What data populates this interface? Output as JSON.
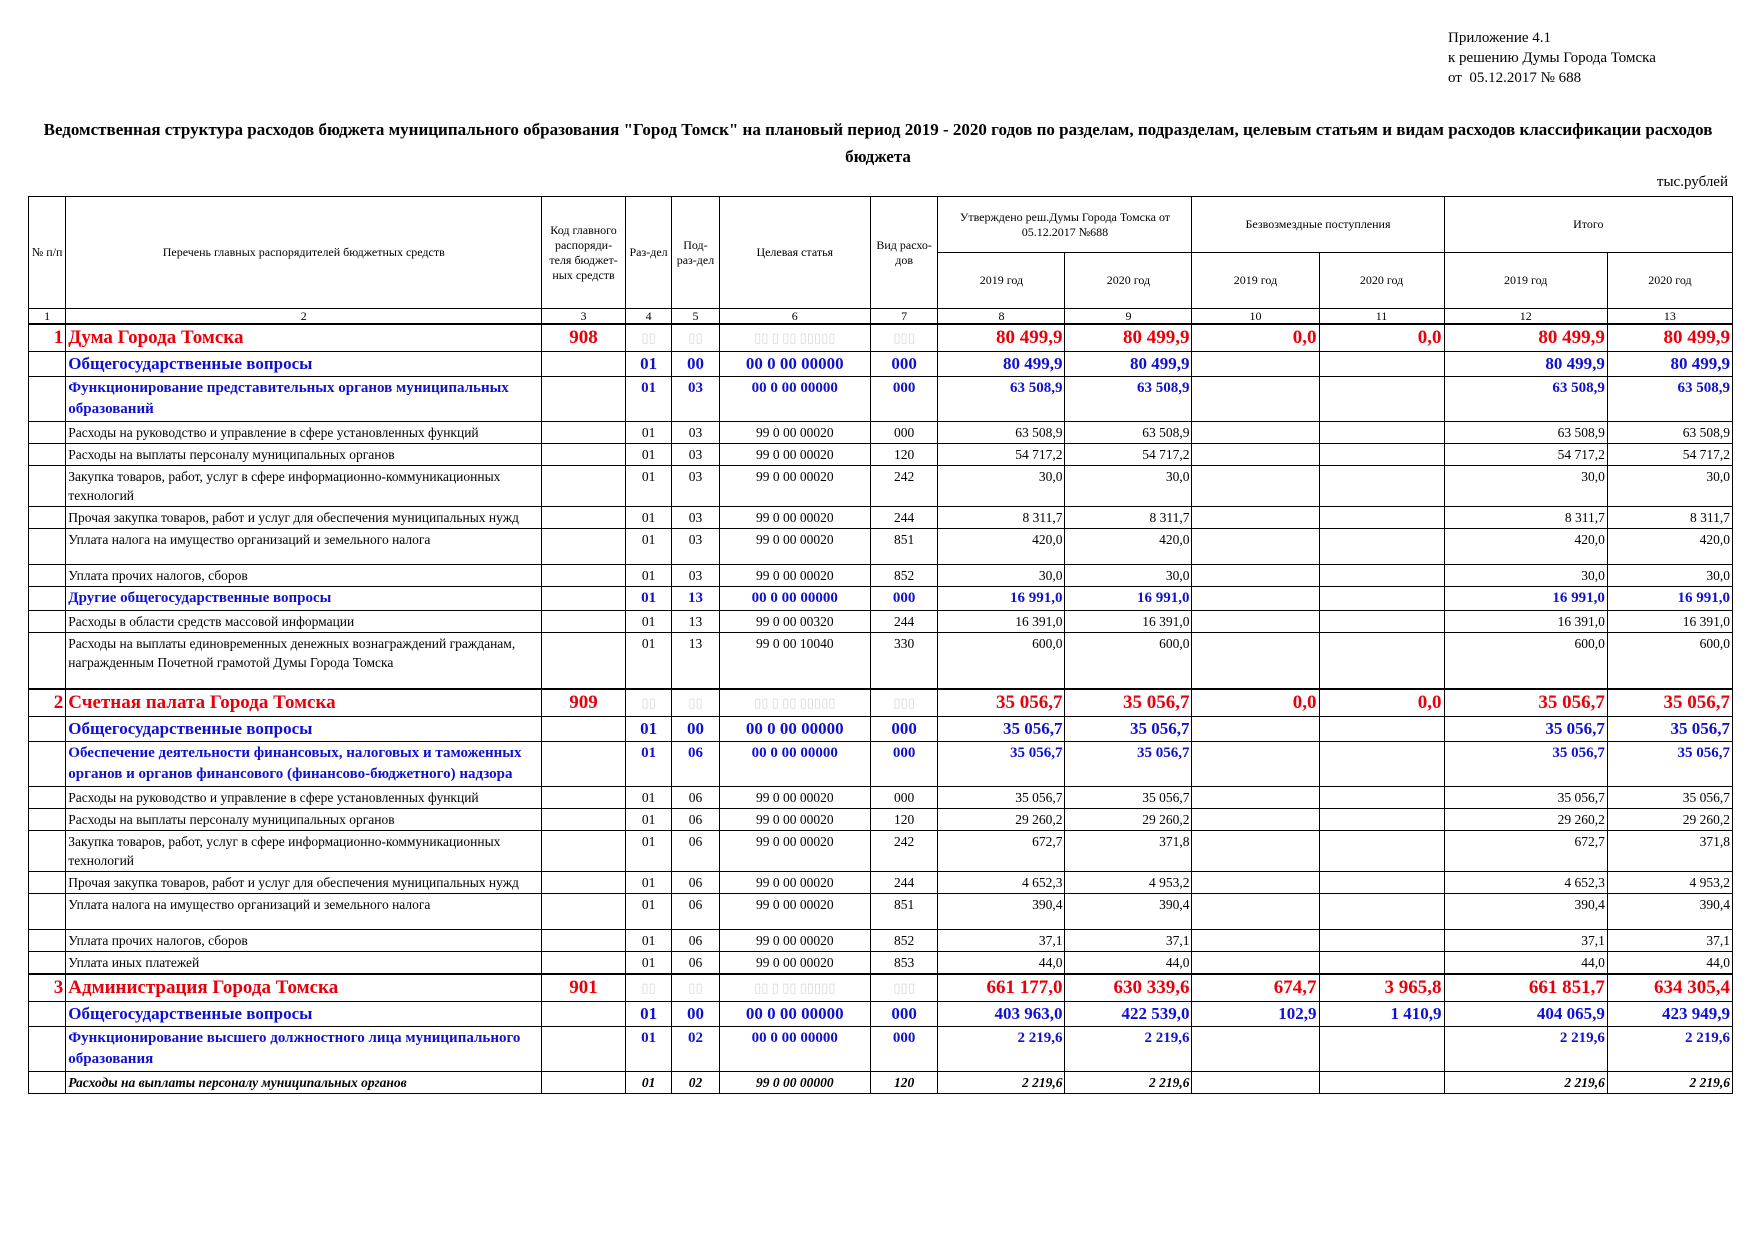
{
  "appendix": {
    "line1": "Приложение 4.1",
    "line2": "к решению Думы Города Томска",
    "line3": "от  05.12.2017 № 688"
  },
  "title": "Ведомственная структура расходов бюджета муниципального образования \"Город Томск\" на плановый период 2019 - 2020 годов по разделам, подразделам, целевым статьям и видам расходов классификации расходов бюджета",
  "units": "тыс.рублей",
  "header": {
    "num": "№ п/п",
    "name": "Перечень главных распорядителей бюджетных средств",
    "code": "Код главного распоряди-теля бюджет-ных средств",
    "razdel": "Раз-дел",
    "podrazdel": "Под-раз-дел",
    "statya": "Целевая статья",
    "vid": "Вид расхо-дов",
    "approved": "Утверждено реш.Думы Города Томска от 05.12.2017 №688",
    "free": "Безвозмездные поступления",
    "total": "Итого",
    "y2019": "2019 год",
    "y2020": "2020 год",
    "nums": [
      "1",
      "2",
      "3",
      "4",
      "5",
      "6",
      "7",
      "8",
      "9",
      "10",
      "11",
      "12",
      "13"
    ]
  },
  "rows": [
    {
      "t": "dept",
      "num": "1",
      "name": "Дума Города Томска",
      "code": "908",
      "r": "▯▯",
      "p": "▯▯",
      "s": "▯▯ ▯ ▯▯ ▯▯▯▯▯",
      "v": "▯▯▯",
      "a19": "80 499,9",
      "a20": "80 499,9",
      "f19": "0,0",
      "f20": "0,0",
      "t19": "80 499,9",
      "t20": "80 499,9"
    },
    {
      "t": "sec",
      "num": "",
      "name": "Общегосударственные вопросы",
      "code": "",
      "r": "01",
      "p": "00",
      "s": "00 0 00 00000",
      "v": "000",
      "a19": "80 499,9",
      "a20": "80 499,9",
      "f19": "",
      "f20": "",
      "t19": "80 499,9",
      "t20": "80 499,9"
    },
    {
      "t": "sub",
      "num": "",
      "name": "Функционирование представительных органов муниципальных образований",
      "code": "",
      "r": "01",
      "p": "03",
      "s": "00 0 00 00000",
      "v": "000",
      "a19": "63 508,9",
      "a20": "63 508,9",
      "f19": "",
      "f20": "",
      "t19": "63 508,9",
      "t20": "63 508,9"
    },
    {
      "t": "item",
      "ind": "1",
      "num": "",
      "name": "Расходы на руководство и управление в сфере установленных функций",
      "code": "",
      "r": "01",
      "p": "03",
      "s": "99 0 00 00020",
      "v": "000",
      "a19": "63 508,9",
      "a20": "63 508,9",
      "f19": "",
      "f20": "",
      "t19": "63 508,9",
      "t20": "63 508,9"
    },
    {
      "t": "item",
      "ind": "0",
      "num": "",
      "name": "Расходы на выплаты персоналу муниципальных органов",
      "code": "",
      "r": "01",
      "p": "03",
      "s": "99 0 00 00020",
      "v": "120",
      "a19": "54 717,2",
      "a20": "54 717,2",
      "f19": "",
      "f20": "",
      "t19": "54 717,2",
      "t20": "54 717,2"
    },
    {
      "t": "item",
      "ind": "2",
      "num": "",
      "name": "Закупка товаров, работ, услуг в сфере информационно-коммуникационных технологий",
      "code": "",
      "r": "01",
      "p": "03",
      "s": "99 0 00 00020",
      "v": "242",
      "a19": "30,0",
      "a20": "30,0",
      "f19": "",
      "f20": "",
      "t19": "30,0",
      "t20": "30,0"
    },
    {
      "t": "item",
      "ind": "2",
      "num": "",
      "name": "Прочая закупка товаров, работ и услуг для обеспечения муниципальных нужд",
      "code": "",
      "r": "01",
      "p": "03",
      "s": "99 0 00 00020",
      "v": "244",
      "a19": "8 311,7",
      "a20": "8 311,7",
      "f19": "",
      "f20": "",
      "t19": "8 311,7",
      "t20": "8 311,7"
    },
    {
      "t": "item",
      "ind": "2",
      "num": "",
      "name": "Уплата налога на имущество организаций и земельного налога",
      "code": "",
      "r": "01",
      "p": "03",
      "s": "99 0 00 00020",
      "v": "851",
      "a19": "420,0",
      "a20": "420,0",
      "f19": "",
      "f20": "",
      "t19": "420,0",
      "t20": "420,0",
      "h": "36"
    },
    {
      "t": "item",
      "ind": "2",
      "num": "",
      "name": "Уплата прочих налогов, сборов",
      "code": "",
      "r": "01",
      "p": "03",
      "s": "99 0 00 00020",
      "v": "852",
      "a19": "30,0",
      "a20": "30,0",
      "f19": "",
      "f20": "",
      "t19": "30,0",
      "t20": "30,0"
    },
    {
      "t": "sub",
      "num": "",
      "name": "Другие общегосударственные вопросы",
      "code": "",
      "r": "01",
      "p": "13",
      "s": "00 0 00 00000",
      "v": "000",
      "a19": "16 991,0",
      "a20": "16 991,0",
      "f19": "",
      "f20": "",
      "t19": "16 991,0",
      "t20": "16 991,0"
    },
    {
      "t": "item",
      "ind": "1",
      "num": "",
      "name": "Расходы в области средств массовой информации",
      "code": "",
      "r": "01",
      "p": "13",
      "s": "99 0 00 00320",
      "v": "244",
      "a19": "16 391,0",
      "a20": "16 391,0",
      "f19": "",
      "f20": "",
      "t19": "16 391,0",
      "t20": "16 391,0"
    },
    {
      "t": "item",
      "ind": "1",
      "num": "",
      "name": "Расходы на выплаты единовременных денежных вознаграждений гражданам, награжденным Почетной грамотой Думы Города Томска",
      "code": "",
      "r": "01",
      "p": "13",
      "s": "99 0 00 10040",
      "v": "330",
      "a19": "600,0",
      "a20": "600,0",
      "f19": "",
      "f20": "",
      "t19": "600,0",
      "t20": "600,0",
      "h": "56"
    },
    {
      "t": "dept",
      "num": "2",
      "name": "Счетная палата Города Томска",
      "code": "909",
      "r": "▯▯",
      "p": "▯▯",
      "s": "▯▯ ▯ ▯▯ ▯▯▯▯▯",
      "v": "▯▯▯",
      "a19": "35 056,7",
      "a20": "35 056,7",
      "f19": "0,0",
      "f20": "0,0",
      "t19": "35 056,7",
      "t20": "35 056,7"
    },
    {
      "t": "sec",
      "num": "",
      "name": "Общегосударственные вопросы",
      "code": "",
      "r": "01",
      "p": "00",
      "s": "00 0 00 00000",
      "v": "000",
      "a19": "35 056,7",
      "a20": "35 056,7",
      "f19": "",
      "f20": "",
      "t19": "35 056,7",
      "t20": "35 056,7"
    },
    {
      "t": "sub",
      "num": "",
      "name": "Обеспечение деятельности финансовых, налоговых и таможенных органов и органов финансового (финансово-бюджетного) надзора",
      "code": "",
      "r": "01",
      "p": "06",
      "s": "00 0 00 00000",
      "v": "000",
      "a19": "35 056,7",
      "a20": "35 056,7",
      "f19": "",
      "f20": "",
      "t19": "35 056,7",
      "t20": "35 056,7"
    },
    {
      "t": "item",
      "ind": "1",
      "num": "",
      "name": "Расходы на руководство и управление в сфере установленных функций",
      "code": "",
      "r": "01",
      "p": "06",
      "s": "99 0 00 00020",
      "v": "000",
      "a19": "35 056,7",
      "a20": "35 056,7",
      "f19": "",
      "f20": "",
      "t19": "35 056,7",
      "t20": "35 056,7"
    },
    {
      "t": "item",
      "ind": "0",
      "num": "",
      "name": "Расходы на выплаты персоналу муниципальных органов",
      "code": "",
      "r": "01",
      "p": "06",
      "s": "99 0 00 00020",
      "v": "120",
      "a19": "29 260,2",
      "a20": "29 260,2",
      "f19": "",
      "f20": "",
      "t19": "29 260,2",
      "t20": "29 260,2"
    },
    {
      "t": "item",
      "ind": "2",
      "num": "",
      "name": "Закупка товаров, работ, услуг в сфере информационно-коммуникационных технологий",
      "code": "",
      "r": "01",
      "p": "06",
      "s": "99 0 00 00020",
      "v": "242",
      "a19": "672,7",
      "a20": "371,8",
      "f19": "",
      "f20": "",
      "t19": "672,7",
      "t20": "371,8"
    },
    {
      "t": "item",
      "ind": "2",
      "num": "",
      "name": "Прочая закупка товаров, работ и услуг для обеспечения муниципальных нужд",
      "code": "",
      "r": "01",
      "p": "06",
      "s": "99 0 00 00020",
      "v": "244",
      "a19": "4 652,3",
      "a20": "4 953,2",
      "f19": "",
      "f20": "",
      "t19": "4 652,3",
      "t20": "4 953,2"
    },
    {
      "t": "item",
      "ind": "2",
      "num": "",
      "name": "Уплата налога на имущество организаций и земельного налога",
      "code": "",
      "r": "01",
      "p": "06",
      "s": "99 0 00 00020",
      "v": "851",
      "a19": "390,4",
      "a20": "390,4",
      "f19": "",
      "f20": "",
      "t19": "390,4",
      "t20": "390,4",
      "h": "36"
    },
    {
      "t": "item",
      "ind": "2",
      "num": "",
      "name": "Уплата прочих налогов, сборов",
      "code": "",
      "r": "01",
      "p": "06",
      "s": "99 0 00 00020",
      "v": "852",
      "a19": "37,1",
      "a20": "37,1",
      "f19": "",
      "f20": "",
      "t19": "37,1",
      "t20": "37,1"
    },
    {
      "t": "item",
      "ind": "2",
      "num": "",
      "name": "Уплата иных платежей",
      "code": "",
      "r": "01",
      "p": "06",
      "s": "99 0 00 00020",
      "v": "853",
      "a19": "44,0",
      "a20": "44,0",
      "f19": "",
      "f20": "",
      "t19": "44,0",
      "t20": "44,0"
    },
    {
      "t": "dept",
      "num": "3",
      "name": "Администрация Города Томска",
      "code": "901",
      "r": "▯▯",
      "p": "▯▯",
      "s": "▯▯ ▯ ▯▯ ▯▯▯▯▯",
      "v": "▯▯▯",
      "a19": "661 177,0",
      "a20": "630 339,6",
      "f19": "674,7",
      "f20": "3 965,8",
      "t19": "661 851,7",
      "t20": "634 305,4"
    },
    {
      "t": "sec",
      "num": "",
      "name": "Общегосударственные вопросы",
      "code": "",
      "r": "01",
      "p": "00",
      "s": "00 0 00 00000",
      "v": "000",
      "a19": "403 963,0",
      "a20": "422 539,0",
      "f19": "102,9",
      "f20": "1 410,9",
      "t19": "404 065,9",
      "t20": "423 949,9"
    },
    {
      "t": "sub",
      "num": "",
      "name": "Функционирование высшего должностного лица муниципального образования",
      "code": "",
      "r": "01",
      "p": "02",
      "s": "00 0 00 00000",
      "v": "000",
      "a19": "2 219,6",
      "a20": "2 219,6",
      "f19": "",
      "f20": "",
      "t19": "2 219,6",
      "t20": "2 219,6"
    },
    {
      "t": "ital",
      "ind": "2",
      "num": "",
      "name": "Расходы на выплаты персоналу муниципальных органов",
      "code": "",
      "r": "01",
      "p": "02",
      "s": "99 0 00 00000",
      "v": "120",
      "a19": "2 219,6",
      "a20": "2 219,6",
      "f19": "",
      "f20": "",
      "t19": "2 219,6",
      "t20": "2 219,6"
    }
  ]
}
